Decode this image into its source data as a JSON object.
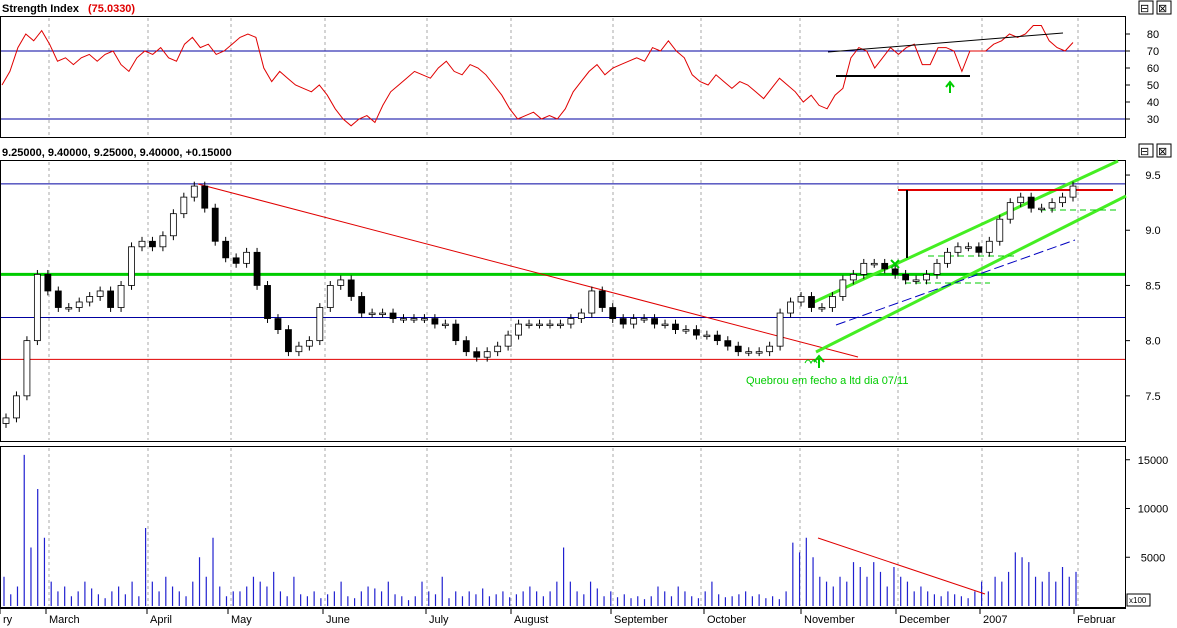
{
  "panels": {
    "rsi": {
      "title": "Strength Index",
      "value_text": "(75.0330)",
      "ticks": [
        30,
        40,
        50,
        60,
        70,
        80
      ],
      "levels": [
        30,
        70
      ]
    },
    "price": {
      "title": "9.25000, 9.40000, 9.25000, 9.40000, +0.15000",
      "ticks": [
        "7.5",
        "8.0",
        "8.5",
        "9.0",
        "9.5"
      ],
      "annotation": "Quebrou em fecho a ltd dia 07/11"
    },
    "volume": {
      "ticks": [
        "5000",
        "10000",
        "15000"
      ],
      "unit": "x100"
    }
  },
  "buttons": {
    "up": "⊟",
    "close": "⊠"
  },
  "x_labels": [
    "ry",
    "March",
    "April",
    "May",
    "June",
    "July",
    "August",
    "September",
    "October",
    "November",
    "December",
    "2007",
    "Februar"
  ],
  "colors": {
    "rsi_line": "#e00000",
    "hline_blue": "#0000a0",
    "support_red": "#e00000",
    "green": "#00cc00",
    "channel_green": "#44ee22",
    "volume": "#2020d0",
    "grid": "#aaaaaa"
  },
  "chart_data": [
    {
      "type": "line",
      "title": "Strength Index",
      "ylim": [
        20,
        90
      ],
      "series": [
        {
          "values": [
            50,
            58,
            72,
            80,
            76,
            82,
            74,
            64,
            66,
            62,
            66,
            68,
            64,
            68,
            70,
            62,
            58,
            66,
            70,
            68,
            72,
            66,
            64,
            74,
            78,
            72,
            74,
            68,
            70,
            74,
            78,
            80,
            78,
            60,
            52,
            58,
            54,
            50,
            48,
            46,
            50,
            44,
            36,
            30,
            26,
            30,
            32,
            28,
            38,
            46,
            50,
            54,
            58,
            56,
            54,
            60,
            64,
            58,
            56,
            62,
            60,
            56,
            50,
            44,
            36,
            30,
            32,
            34,
            30,
            32,
            30,
            36,
            46,
            52,
            58,
            62,
            56,
            60,
            62,
            64,
            66,
            64,
            72,
            70,
            76,
            70,
            66,
            56,
            52,
            50,
            56,
            52,
            48,
            52,
            50,
            46,
            42,
            48,
            54,
            50,
            46,
            40,
            44,
            38,
            36,
            44,
            48,
            66,
            72,
            70,
            60,
            66,
            72,
            68,
            72,
            74,
            62,
            62,
            72,
            72,
            70,
            58,
            70,
            70,
            70,
            74,
            76,
            80,
            78,
            80,
            85,
            85,
            76,
            72,
            70,
            75
          ]
        }
      ]
    },
    {
      "type": "candlestick",
      "title": "9.25000, 9.40000, 9.25000, 9.40000, +0.15000",
      "ylim": [
        7.1,
        9.6
      ],
      "horizontal_levels": [
        9.42,
        8.6,
        8.21,
        7.83
      ],
      "series": [
        {
          "name": "close",
          "values": [
            7.3,
            7.5,
            8.0,
            8.6,
            8.45,
            8.3,
            8.3,
            8.35,
            8.4,
            8.45,
            8.3,
            8.5,
            8.85,
            8.9,
            8.85,
            8.95,
            9.15,
            9.3,
            9.4,
            9.2,
            8.9,
            8.75,
            8.7,
            8.8,
            8.5,
            8.2,
            8.1,
            7.9,
            7.95,
            8.0,
            8.3,
            8.5,
            8.55,
            8.4,
            8.25,
            8.25,
            8.25,
            8.2,
            8.2,
            8.2,
            8.2,
            8.15,
            8.15,
            8.0,
            7.9,
            7.85,
            7.9,
            7.95,
            8.05,
            8.15,
            8.15,
            8.15,
            8.15,
            8.15,
            8.2,
            8.25,
            8.45,
            8.3,
            8.2,
            8.15,
            8.2,
            8.2,
            8.15,
            8.15,
            8.1,
            8.1,
            8.05,
            8.05,
            8.0,
            7.95,
            7.9,
            7.9,
            7.9,
            7.95,
            8.25,
            8.35,
            8.4,
            8.3,
            8.3,
            8.4,
            8.55,
            8.6,
            8.7,
            8.7,
            8.65,
            8.6,
            8.55,
            8.55,
            8.6,
            8.7,
            8.8,
            8.85,
            8.85,
            8.8,
            8.9,
            9.1,
            9.25,
            9.3,
            9.2,
            9.2,
            9.25,
            9.3,
            9.4
          ]
        }
      ]
    },
    {
      "type": "bar",
      "title": "",
      "ylim": [
        0,
        16000
      ],
      "values": [
        3000,
        1200,
        2000,
        15500,
        6000,
        12000,
        7000,
        2500,
        1500,
        2000,
        1000,
        1500,
        2500,
        1800,
        1200,
        800,
        1500,
        2000,
        1200,
        2500,
        1000,
        8000,
        2500,
        1500,
        3000,
        2000,
        1500,
        1000,
        2500,
        5000,
        3000,
        7000,
        2000,
        1000,
        1500,
        1500,
        2000,
        3000,
        2500,
        2000,
        3500,
        1500,
        1000,
        3000,
        1200,
        1000,
        1500,
        800,
        1200,
        1500,
        2500,
        1000,
        800,
        1500,
        2000,
        1800,
        1500,
        2500,
        1200,
        1000,
        600,
        1000,
        2500,
        1500,
        1200,
        3000,
        800,
        1500,
        1000,
        1500,
        1200,
        1800,
        1000,
        1200,
        1500,
        900,
        1200,
        1500,
        2000,
        1500,
        1000,
        1500,
        2500,
        6000,
        2500,
        1500,
        1200,
        2500,
        1800,
        1000,
        1500,
        900,
        1200,
        800,
        1000,
        700,
        1000,
        2000,
        1500,
        1000,
        2000,
        1500,
        1000,
        800,
        1500,
        2500,
        1200,
        900,
        1000,
        1200,
        1500,
        1000,
        1200,
        800,
        1000,
        700,
        1500,
        6500,
        5500,
        7000,
        5000,
        3000,
        2500,
        2000,
        3000,
        2500,
        4500,
        4000,
        3000,
        4500,
        3500,
        2000,
        4000,
        3000,
        2500,
        1500,
        2000,
        1500,
        1200,
        1000,
        1500,
        1200,
        1000,
        800,
        1500,
        2500,
        1500,
        3000,
        2500,
        3500,
        5500,
        5000,
        4500,
        3000,
        2500,
        3500,
        2500,
        4000,
        3000,
        3500
      ]
    }
  ]
}
